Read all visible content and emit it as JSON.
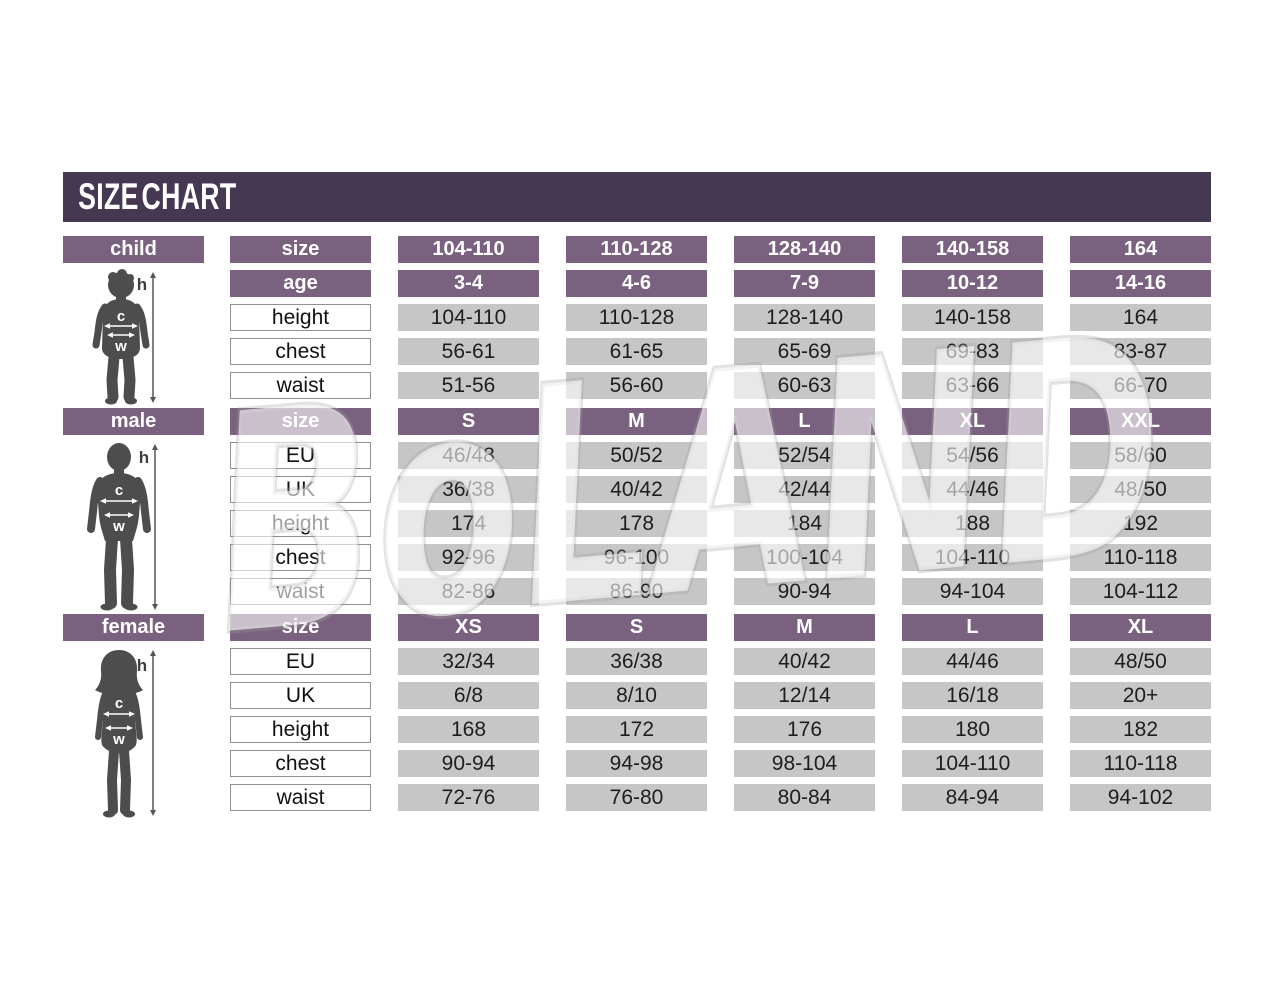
{
  "title_bar": {
    "title": "SIZE CHART"
  },
  "watermark_text": "BoLAND",
  "figure_labels": {
    "height_letter": "h",
    "chest_letter": "c",
    "waist_letter": "w"
  },
  "colors": {
    "title_bar_bg": "#453853",
    "header_purple": "#7b6180",
    "cell_gray": "#c6c6c6",
    "silhouette_gray": "#4d4d4d",
    "text_dark": "#1e1e1e",
    "label_border": "#8f8f8f"
  },
  "chart_data": [
    {
      "type": "table",
      "name": "child",
      "section_label": "child",
      "rows": [
        {
          "label": "size",
          "style": "header",
          "values": [
            "104-110",
            "110-128",
            "128-140",
            "140-158",
            "164"
          ]
        },
        {
          "label": "age",
          "style": "header",
          "values": [
            "3-4",
            "4-6",
            "7-9",
            "10-12",
            "14-16"
          ]
        },
        {
          "label": "height",
          "style": "data",
          "values": [
            "104-110",
            "110-128",
            "128-140",
            "140-158",
            "164"
          ]
        },
        {
          "label": "chest",
          "style": "data",
          "values": [
            "56-61",
            "61-65",
            "65-69",
            "69-83",
            "83-87"
          ]
        },
        {
          "label": "waist",
          "style": "data",
          "values": [
            "51-56",
            "56-60",
            "60-63",
            "63-66",
            "66-70"
          ]
        }
      ]
    },
    {
      "type": "table",
      "name": "male",
      "section_label": "male",
      "rows": [
        {
          "label": "size",
          "style": "header",
          "values": [
            "S",
            "M",
            "L",
            "XL",
            "XXL"
          ]
        },
        {
          "label": "EU",
          "style": "data",
          "values": [
            "46/48",
            "50/52",
            "52/54",
            "54/56",
            "58/60"
          ]
        },
        {
          "label": "UK",
          "style": "data",
          "values": [
            "36/38",
            "40/42",
            "42/44",
            "44/46",
            "48/50"
          ]
        },
        {
          "label": "height",
          "style": "data",
          "values": [
            "174",
            "178",
            "184",
            "188",
            "192"
          ]
        },
        {
          "label": "chest",
          "style": "data",
          "values": [
            "92-96",
            "96-100",
            "100-104",
            "104-110",
            "110-118"
          ]
        },
        {
          "label": "waist",
          "style": "data",
          "values": [
            "82-86",
            "86-90",
            "90-94",
            "94-104",
            "104-112"
          ]
        }
      ]
    },
    {
      "type": "table",
      "name": "female",
      "section_label": "female",
      "rows": [
        {
          "label": "size",
          "style": "header",
          "values": [
            "XS",
            "S",
            "M",
            "L",
            "XL"
          ]
        },
        {
          "label": "EU",
          "style": "data",
          "values": [
            "32/34",
            "36/38",
            "40/42",
            "44/46",
            "48/50"
          ]
        },
        {
          "label": "UK",
          "style": "data",
          "values": [
            "6/8",
            "8/10",
            "12/14",
            "16/18",
            "20+"
          ]
        },
        {
          "label": "height",
          "style": "data",
          "values": [
            "168",
            "172",
            "176",
            "180",
            "182"
          ]
        },
        {
          "label": "chest",
          "style": "data",
          "values": [
            "90-94",
            "94-98",
            "98-104",
            "104-110",
            "110-118"
          ]
        },
        {
          "label": "waist",
          "style": "data",
          "values": [
            "72-76",
            "76-80",
            "80-84",
            "84-94",
            "94-102"
          ]
        }
      ]
    }
  ]
}
